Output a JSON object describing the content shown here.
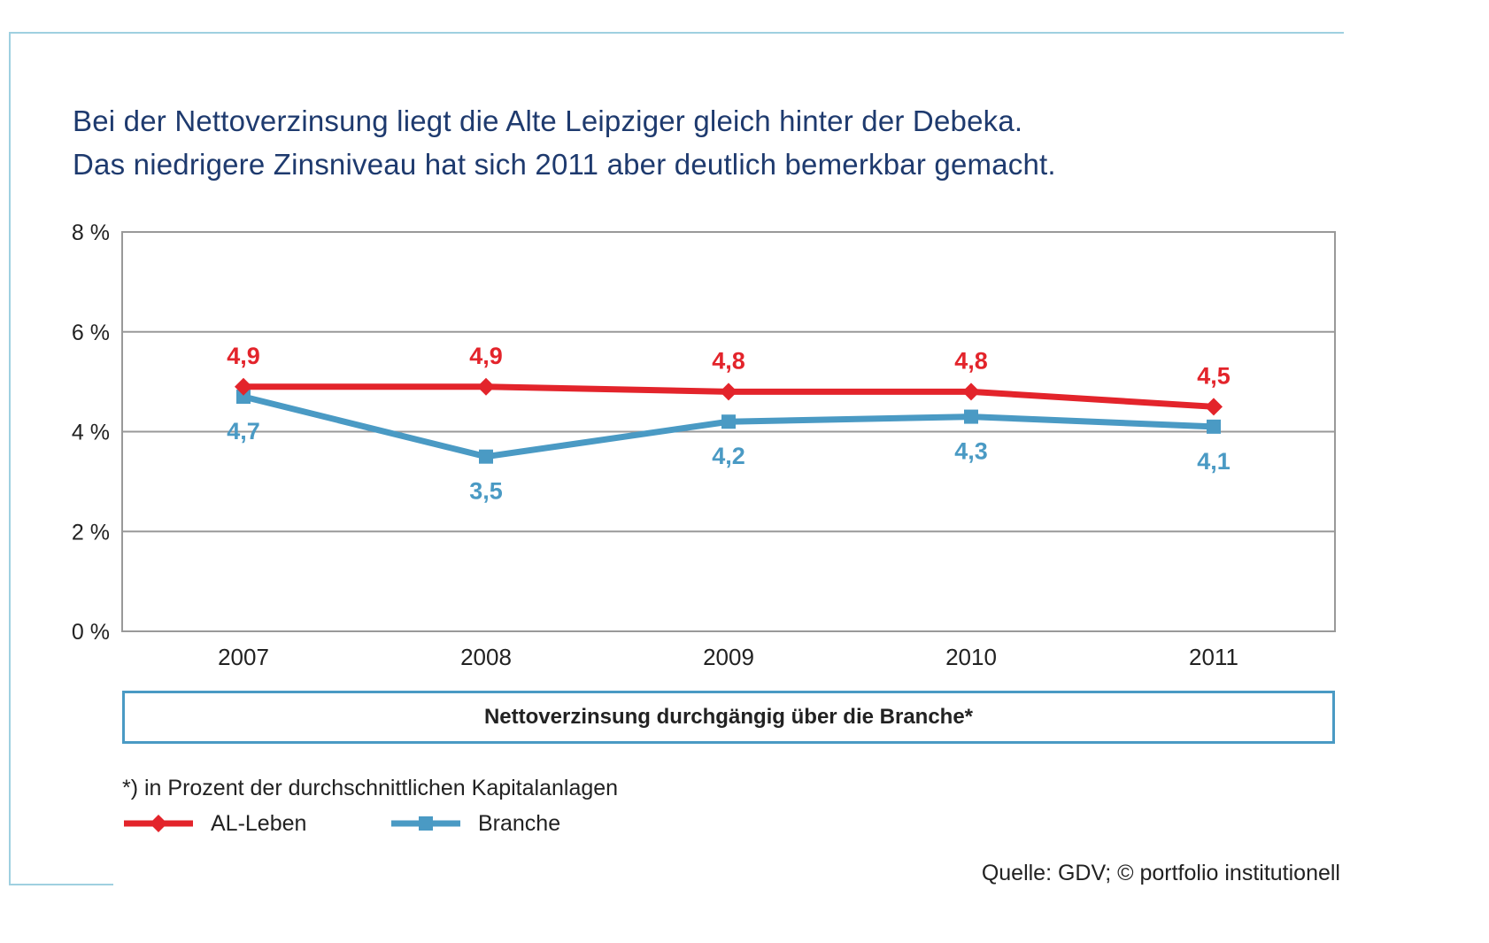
{
  "headline": {
    "line1": "Bei der Nettoverzinsung liegt die Alte Leipziger gleich hinter der Debeka.",
    "line2": "Das niedrigere Zinsniveau hat sich 2011 aber deutlich bemerkbar gemacht."
  },
  "caption": "Nettoverzinsung durchgängig über die Branche*",
  "footnote": "*) in Prozent der durchschnittlichen Kapitalanlagen",
  "source": "Quelle: GDV; © portfolio institutionell",
  "colors": {
    "al_leben": "#e3242b",
    "branche": "#4a9ac4",
    "grid": "#999999",
    "headline": "#1e3a6e",
    "frame": "#9fd0e0"
  },
  "chart_data": {
    "type": "line",
    "x": [
      "2007",
      "2008",
      "2009",
      "2010",
      "2011"
    ],
    "ylim": [
      0,
      8
    ],
    "yticks": [
      0,
      2,
      4,
      6,
      8
    ],
    "ytick_labels": [
      "0 %",
      "2 %",
      "4 %",
      "6 %",
      "8 %"
    ],
    "grid": true,
    "legend_position": "bottom-left",
    "series": [
      {
        "name": "AL-Leben",
        "marker": "diamond",
        "color": "#e3242b",
        "values": [
          4.9,
          4.9,
          4.8,
          4.8,
          4.5
        ],
        "labels": [
          "4,9",
          "4,9",
          "4,8",
          "4,8",
          "4,5"
        ],
        "label_position": "above"
      },
      {
        "name": "Branche",
        "marker": "square",
        "color": "#4a9ac4",
        "values": [
          4.7,
          3.5,
          4.2,
          4.3,
          4.1
        ],
        "labels": [
          "4,7",
          "3,5",
          "4,2",
          "4,3",
          "4,1"
        ],
        "label_position": "below"
      }
    ]
  }
}
